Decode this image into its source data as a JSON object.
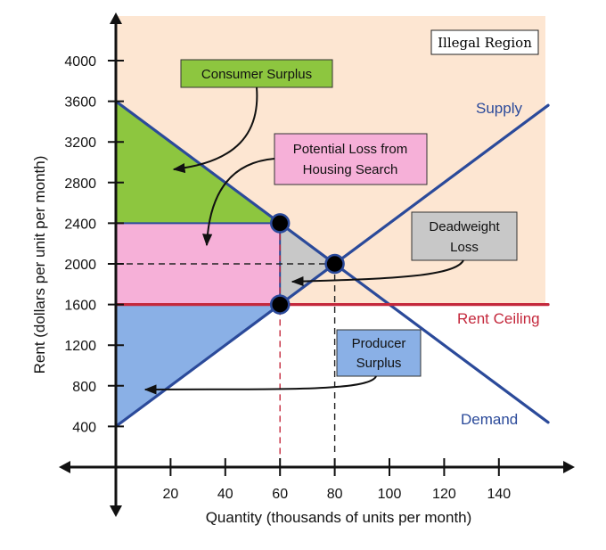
{
  "chart_data": {
    "type": "area",
    "xlabel": "Quantity (thousands of units per month)",
    "ylabel": "Rent (dollars per unit per month)",
    "xlim": [
      0,
      160
    ],
    "ylim": [
      0,
      4000
    ],
    "x_ticks": [
      20,
      40,
      60,
      80,
      100,
      120,
      140
    ],
    "y_ticks": [
      400,
      800,
      1200,
      1600,
      2000,
      2400,
      2800,
      3200,
      3600,
      4000
    ],
    "series": [
      {
        "name": "Supply",
        "x": [
          0,
          158
        ],
        "y": [
          400,
          3560
        ]
      },
      {
        "name": "Demand",
        "x": [
          0,
          158
        ],
        "y": [
          3600,
          440
        ]
      },
      {
        "name": "Rent Ceiling",
        "x": [
          0,
          158
        ],
        "y": [
          1600,
          1600
        ]
      }
    ],
    "points": [
      {
        "x": 60,
        "y": 2400
      },
      {
        "x": 80,
        "y": 2000
      },
      {
        "x": 60,
        "y": 1600
      }
    ],
    "regions": [
      {
        "label": "Consumer Surplus",
        "color": "#8dc63f",
        "polygon": [
          [
            0,
            3600
          ],
          [
            60,
            2400
          ],
          [
            0,
            2400
          ]
        ]
      },
      {
        "label": "Potential Loss from Housing Search",
        "color": "#f6b0d8",
        "polygon": [
          [
            0,
            2400
          ],
          [
            60,
            2400
          ],
          [
            60,
            1600
          ],
          [
            0,
            1600
          ]
        ]
      },
      {
        "label": "Deadweight Loss",
        "color": "#c8c8c8",
        "polygon": [
          [
            60,
            2400
          ],
          [
            80,
            2000
          ],
          [
            60,
            1600
          ]
        ]
      },
      {
        "label": "Producer Surplus",
        "color": "#8ab0e6",
        "polygon": [
          [
            0,
            1600
          ],
          [
            60,
            1600
          ],
          [
            0,
            400
          ]
        ]
      }
    ],
    "illegal_region_label": "Illegal Region",
    "colors": {
      "supply": "#2b4a9a",
      "demand": "#2b4a9a",
      "rent_ceiling": "#c4283c",
      "illegal_region": "#fde6d2",
      "axis": "#111111"
    }
  }
}
